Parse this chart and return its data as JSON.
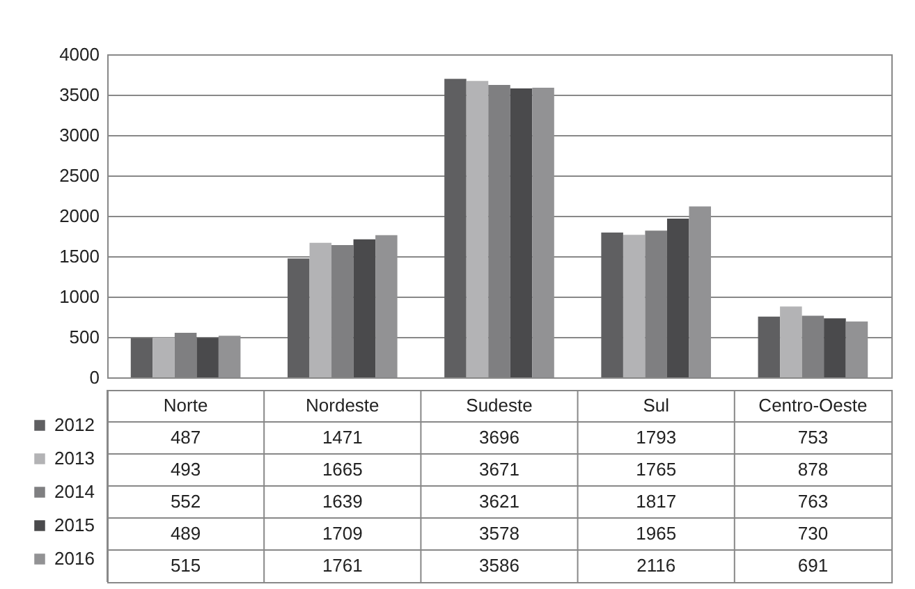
{
  "chart_data": {
    "type": "bar",
    "categories": [
      "Norte",
      "Nordeste",
      "Sudeste",
      "Sul",
      "Centro-Oeste"
    ],
    "series": [
      {
        "name": "2012",
        "color": "#5f5f61",
        "values": [
          487,
          1471,
          3696,
          1793,
          753
        ]
      },
      {
        "name": "2013",
        "color": "#b3b3b5",
        "values": [
          493,
          1665,
          3671,
          1765,
          878
        ]
      },
      {
        "name": "2014",
        "color": "#7f7f81",
        "values": [
          552,
          1639,
          3621,
          1817,
          763
        ]
      },
      {
        "name": "2015",
        "color": "#4a4a4c",
        "values": [
          489,
          1709,
          3578,
          1965,
          730
        ]
      },
      {
        "name": "2016",
        "color": "#929294",
        "values": [
          515,
          1761,
          3586,
          2116,
          691
        ]
      }
    ],
    "ylim": [
      0,
      4000
    ],
    "yticks": [
      0,
      500,
      1000,
      1500,
      2000,
      2500,
      3000,
      3500,
      4000
    ],
    "grid": "y",
    "legend": "bottom left",
    "data_labels": true
  }
}
